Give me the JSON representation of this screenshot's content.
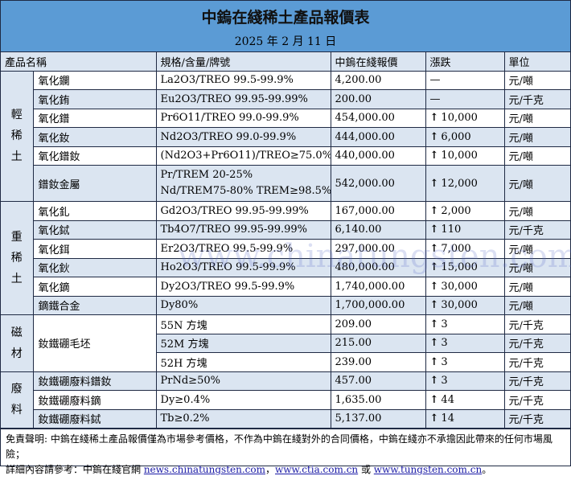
{
  "title": "中鎢在綫稀土產品報價表",
  "date": "2025 年 2 月 11 日",
  "headers": [
    "產品名稱",
    "規格/含量/牌號",
    "中鎢在綫報價",
    "漲跌",
    "單位"
  ],
  "watermark": "www.chinatungsten.com",
  "categories": {
    "light": "輕稀土",
    "heavy": "重稀土",
    "magnet": "磁材",
    "waste": "廢料"
  },
  "rows": [
    {
      "name": "氧化鑭",
      "spec": "La2O3/TREO 99.5-99.9%",
      "price": "4,200.00",
      "change": "—",
      "unit": "元/噸"
    },
    {
      "name": "氧化銪",
      "spec": "Eu2O3/TREO 99.95-99.99%",
      "price": "200.00",
      "change": "—",
      "unit": "元/千克"
    },
    {
      "name": "氧化鐠",
      "spec": "Pr6O11/TREO 99.0-99.9%",
      "price": "454,000.00",
      "change": "10,000",
      "unit": "元/噸"
    },
    {
      "name": "氧化釹",
      "spec": "Nd2O3/TREO 99.0-99.9%",
      "price": "444,000.00",
      "change": "6,000",
      "unit": "元/噸"
    },
    {
      "name": "氧化鐠釹",
      "spec": "(Nd2O3+Pr6O11)/TREO≥75.0%",
      "price": "440,000.00",
      "change": "10,000",
      "unit": "元/噸"
    },
    {
      "name": "鐠釹金屬",
      "spec": "Pr/TREM 20-25%",
      "spec2": "Nd/TREM75-80% TREM≥98.5%",
      "price": "542,000.00",
      "change": "12,000",
      "unit": "元/噸"
    },
    {
      "name": "氧化釓",
      "spec": "Gd2O3/TREO 99.95-99.99%",
      "price": "167,000.00",
      "change": "2,000",
      "unit": "元/噸"
    },
    {
      "name": "氧化鋱",
      "spec": "Tb4O7/TREO 99.95-99.99%",
      "price": "6,140.00",
      "change": "110",
      "unit": "元/千克"
    },
    {
      "name": "氧化鉺",
      "spec": "Er2O3/TREO 99.5-99.9%",
      "price": "297,000.00",
      "change": "7,000",
      "unit": "元/噸"
    },
    {
      "name": "氧化鈥",
      "spec": "Ho2O3/TREO 99.5-99.9%",
      "price": "480,000.00",
      "change": "15,000",
      "unit": "元/噸"
    },
    {
      "name": "氧化鏑",
      "spec": "Dy2O3/TREO 99.5-99.9%",
      "price": "1,740,000.00",
      "change": "30,000",
      "unit": "元/噸"
    },
    {
      "name": "鏑鐵合金",
      "spec": "Dy80%",
      "price": "1,700,000.00",
      "change": "30,000",
      "unit": "元/噸"
    },
    {
      "name": "釹鐵硼毛坯",
      "spec": "55N 方塊",
      "price": "209.00",
      "change": "3",
      "unit": "元/千克"
    },
    {
      "spec": "52M 方塊",
      "price": "215.00",
      "change": "3",
      "unit": "元/千克"
    },
    {
      "spec": "52H 方塊",
      "price": "239.00",
      "change": "3",
      "unit": "元/千克"
    },
    {
      "name": "釹鐵硼廢料鐠釹",
      "spec": "PrNd≥50%",
      "price": "457.00",
      "change": "3",
      "unit": "元/千克"
    },
    {
      "name": "釹鐵硼廢料鏑",
      "spec": "Dy≥0.4%",
      "price": "1,635.00",
      "change": "44",
      "unit": "元/千克"
    },
    {
      "name": "釹鐵硼廢料鋱",
      "spec": "Tb≥0.2%",
      "price": "5,137.00",
      "change": "14",
      "unit": "元/千克"
    }
  ],
  "arrow": "↑",
  "footer": {
    "disclaimer": "免責聲明: 中鎢在綫稀土產品報價僅為市場參考價格，不作為中鎢在綫對外的合同價格，中鎢在綫亦不承擔因此帶來的任何市場風險；",
    "more": "詳細內容請參考：中鎢在綫官網 ",
    "link1": "news.chinatungsten.com",
    "sep1": "，",
    "link2": "www.ctia.com.cn",
    "sep2": " 或 ",
    "link3": "www.tungsten.com.cn",
    "end": "。"
  }
}
